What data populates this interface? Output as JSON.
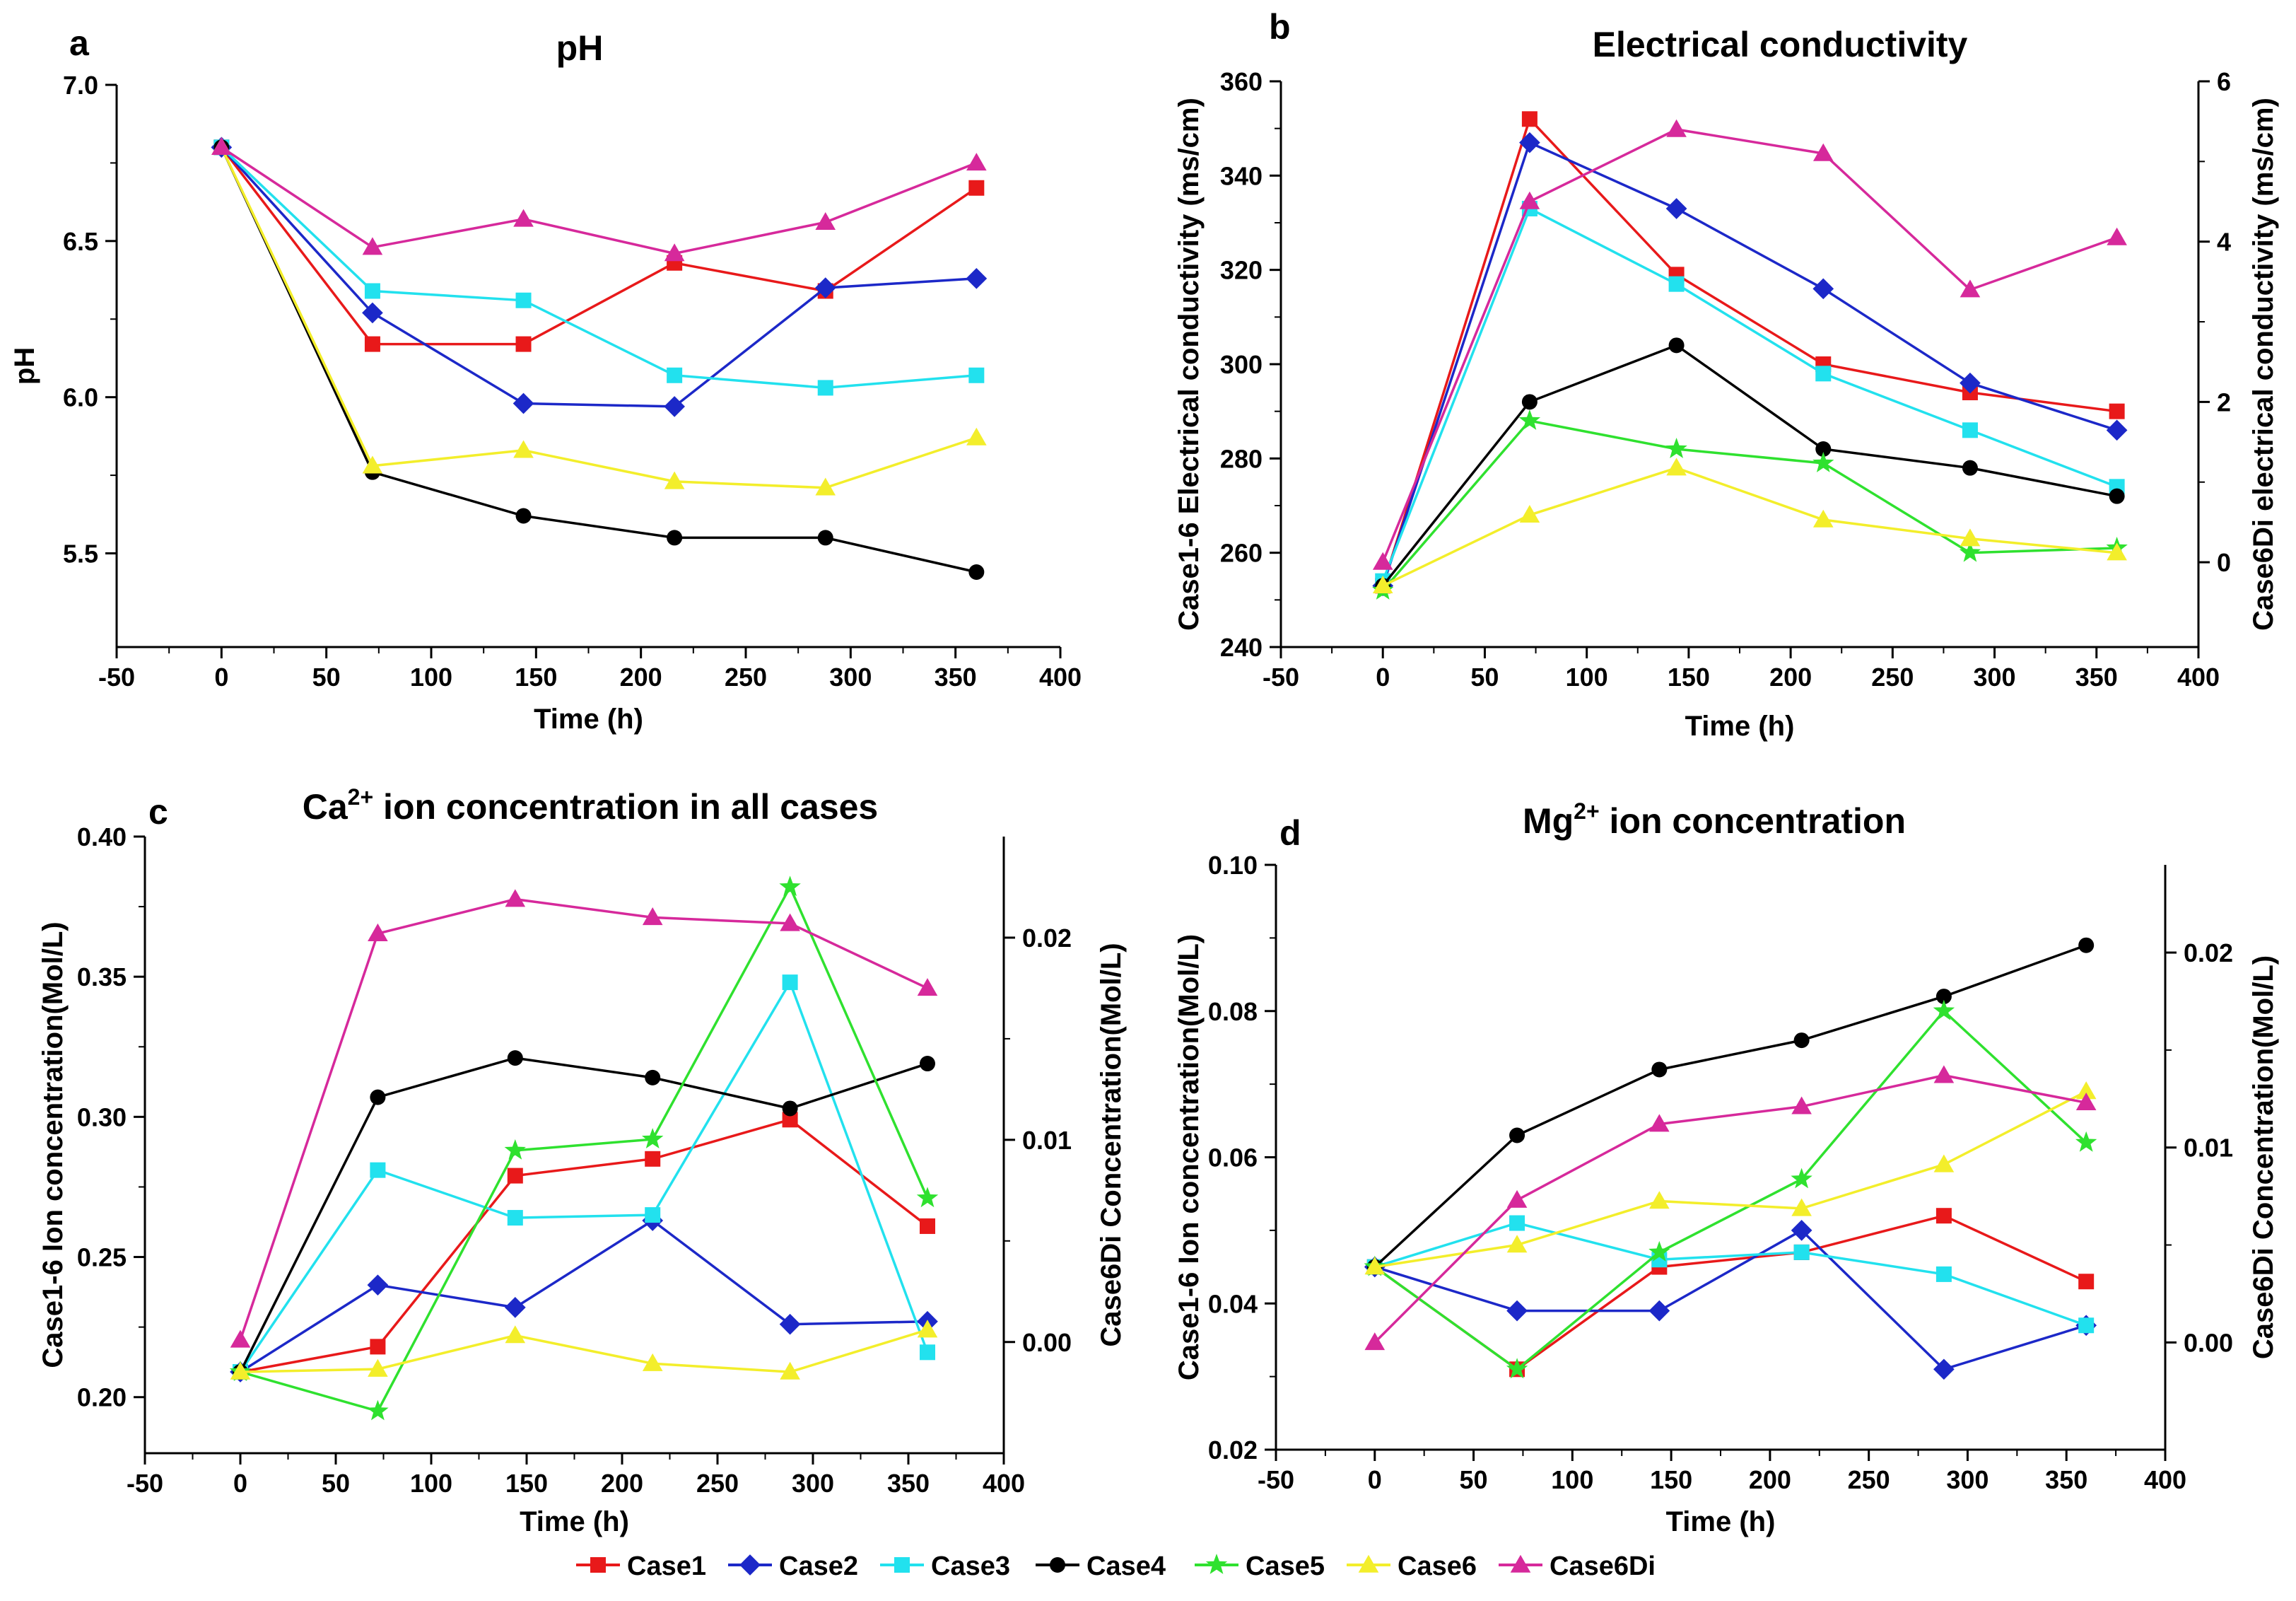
{
  "chart_data": [
    {
      "type": "line",
      "panel": "a",
      "title": "pH",
      "xlabel": "Time (h)",
      "ylabel": "pH",
      "xlim": [
        -50,
        400
      ],
      "ylim": [
        5.2,
        7.0
      ],
      "xticks": [
        -50,
        0,
        50,
        100,
        150,
        200,
        250,
        300,
        350,
        400
      ],
      "yticks": [
        5.5,
        6.0,
        6.5,
        7.0
      ],
      "ytick_labels": [
        "5.5",
        "6.0",
        "6.5",
        "7.0"
      ],
      "x": [
        0,
        72,
        144,
        216,
        288,
        360
      ],
      "series": [
        {
          "name": "Case1",
          "values": [
            6.8,
            6.17,
            6.17,
            6.43,
            6.34,
            6.67
          ]
        },
        {
          "name": "Case2",
          "values": [
            6.8,
            6.27,
            5.98,
            5.97,
            6.35,
            6.38
          ]
        },
        {
          "name": "Case3",
          "values": [
            6.8,
            6.34,
            6.31,
            6.07,
            6.03,
            6.07
          ]
        },
        {
          "name": "Case4",
          "values": [
            6.8,
            5.76,
            5.62,
            5.55,
            5.55,
            5.44
          ]
        },
        {
          "name": "Case6",
          "values": [
            6.8,
            5.78,
            5.83,
            5.73,
            5.71,
            5.87
          ]
        },
        {
          "name": "Case6Di",
          "values": [
            6.8,
            6.48,
            6.57,
            6.46,
            6.56,
            6.75
          ]
        }
      ]
    },
    {
      "type": "line",
      "panel": "b",
      "title": "Electrical conductivity",
      "xlabel": "Time (h)",
      "ylabel": "Case1-6 Electrical conductivity (ms/cm)",
      "y2label": "Case6Di electrical conductivity (ms/cm)",
      "xlim": [
        -50,
        400
      ],
      "ylim": [
        240,
        360
      ],
      "y2lim": [
        -1.058,
        6.0
      ],
      "xticks": [
        -50,
        0,
        50,
        100,
        150,
        200,
        250,
        300,
        350,
        400
      ],
      "yticks": [
        240,
        260,
        280,
        300,
        320,
        340,
        360
      ],
      "ytick_labels": [
        "240",
        "260",
        "280",
        "300",
        "320",
        "340",
        "360"
      ],
      "y2ticks": [
        0,
        2,
        4,
        6
      ],
      "y2tick_labels": [
        "0",
        "2",
        "4",
        "6"
      ],
      "x": [
        0,
        72,
        144,
        216,
        288,
        360
      ],
      "series": [
        {
          "name": "Case1",
          "axis": "left",
          "values": [
            253,
            352,
            319,
            300,
            294,
            290
          ]
        },
        {
          "name": "Case2",
          "axis": "left",
          "values": [
            253,
            347,
            333,
            316,
            296,
            286
          ]
        },
        {
          "name": "Case3",
          "axis": "left",
          "values": [
            254,
            333,
            317,
            298,
            286,
            274
          ]
        },
        {
          "name": "Case4",
          "axis": "left",
          "values": [
            253,
            292,
            304,
            282,
            278,
            272
          ]
        },
        {
          "name": "Case5",
          "axis": "left",
          "values": [
            252,
            288,
            282,
            279,
            260,
            261
          ]
        },
        {
          "name": "Case6",
          "axis": "left",
          "values": [
            253,
            268,
            278,
            267,
            263,
            260
          ]
        },
        {
          "name": "Case6Di",
          "axis": "right",
          "values": [
            0.0,
            4.5,
            5.4,
            5.1,
            3.4,
            4.05
          ]
        }
      ]
    },
    {
      "type": "line",
      "panel": "c",
      "title": "Ca",
      "title_superscript": "2+",
      "title_rest": " ion concentration in all cases",
      "xlabel": "Time (h)",
      "ylabel": "Case1-6 Ion concentration(Mol/L)",
      "y2label": "Case6Di Concentration(Mol/L)",
      "xlim": [
        -50,
        400
      ],
      "ylim": [
        0.18,
        0.4
      ],
      "y2lim": [
        -0.0055,
        0.025
      ],
      "xticks": [
        -50,
        0,
        50,
        100,
        150,
        200,
        250,
        300,
        350,
        400
      ],
      "yticks": [
        0.2,
        0.25,
        0.3,
        0.35,
        0.4
      ],
      "ytick_labels": [
        "0.20",
        "0.25",
        "0.30",
        "0.35",
        "0.40"
      ],
      "y2ticks": [
        0.0,
        0.01,
        0.02
      ],
      "y2tick_labels": [
        "0.00",
        "0.01",
        "0.02"
      ],
      "x": [
        0,
        72,
        144,
        216,
        288,
        360
      ],
      "series": [
        {
          "name": "Case1",
          "axis": "left",
          "values": [
            0.209,
            0.218,
            0.279,
            0.285,
            0.299,
            0.261
          ]
        },
        {
          "name": "Case2",
          "axis": "left",
          "values": [
            0.209,
            0.24,
            0.232,
            0.263,
            0.226,
            0.227
          ]
        },
        {
          "name": "Case3",
          "axis": "left",
          "values": [
            0.209,
            0.281,
            0.264,
            0.265,
            0.348,
            0.216
          ]
        },
        {
          "name": "Case4",
          "axis": "left",
          "values": [
            0.209,
            0.307,
            0.321,
            0.314,
            0.303,
            0.319
          ]
        },
        {
          "name": "Case5",
          "axis": "left",
          "values": [
            0.209,
            0.195,
            0.288,
            0.292,
            0.382,
            0.271
          ]
        },
        {
          "name": "Case6",
          "axis": "left",
          "values": [
            0.209,
            0.21,
            0.222,
            0.212,
            0.209,
            0.224
          ]
        },
        {
          "name": "Case6Di",
          "axis": "right",
          "values": [
            0.0001,
            0.0202,
            0.0219,
            0.021,
            0.0207,
            0.0175
          ]
        }
      ]
    },
    {
      "type": "line",
      "panel": "d",
      "title": "Mg",
      "title_superscript": "2+",
      "title_rest": " ion concentration",
      "xlabel": "Time (h)",
      "ylabel": "Case1-6 Ion concentration(Mol/L)",
      "y2label": "Case6Di Concentration(Mol/L)",
      "xlim": [
        -50,
        400
      ],
      "ylim": [
        0.02,
        0.1
      ],
      "y2lim": [
        -0.0055,
        0.0245
      ],
      "xticks": [
        -50,
        0,
        50,
        100,
        150,
        200,
        250,
        300,
        350,
        400
      ],
      "yticks": [
        0.02,
        0.04,
        0.06,
        0.08,
        0.1
      ],
      "ytick_labels": [
        "0.02",
        "0.04",
        "0.06",
        "0.08",
        "0.10"
      ],
      "y2ticks": [
        0.0,
        0.01,
        0.02
      ],
      "y2tick_labels": [
        "0.00",
        "0.01",
        "0.02"
      ],
      "x": [
        0,
        72,
        144,
        216,
        288,
        360
      ],
      "series": [
        {
          "name": "Case1",
          "axis": "left",
          "values": [
            0.045,
            0.031,
            0.045,
            0.047,
            0.052,
            0.043
          ]
        },
        {
          "name": "Case2",
          "axis": "left",
          "values": [
            0.045,
            0.039,
            0.039,
            0.05,
            0.031,
            0.037
          ]
        },
        {
          "name": "Case3",
          "axis": "left",
          "values": [
            0.045,
            0.051,
            0.046,
            0.047,
            0.044,
            0.037
          ]
        },
        {
          "name": "Case4",
          "axis": "left",
          "values": [
            0.045,
            0.063,
            0.072,
            0.076,
            0.082,
            0.089
          ]
        },
        {
          "name": "Case5",
          "axis": "left",
          "values": [
            0.045,
            0.031,
            0.047,
            0.057,
            0.08,
            0.062
          ]
        },
        {
          "name": "Case6",
          "axis": "left",
          "values": [
            0.045,
            0.048,
            0.054,
            0.053,
            0.059,
            0.069
          ]
        },
        {
          "name": "Case6Di",
          "axis": "right",
          "values": [
            0.0,
            0.0073,
            0.0112,
            0.0121,
            0.0137,
            0.0123
          ]
        }
      ]
    }
  ],
  "legend": {
    "placement": "bottom-center",
    "entries": [
      {
        "name": "Case1",
        "marker": "square",
        "color": "#e8191a"
      },
      {
        "name": "Case2",
        "marker": "diamond",
        "color": "#1c28c8"
      },
      {
        "name": "Case3",
        "marker": "square",
        "color": "#22e1ee"
      },
      {
        "name": "Case4",
        "marker": "circle",
        "color": "#000000"
      },
      {
        "name": "Case5",
        "marker": "star",
        "color": "#2fe12f"
      },
      {
        "name": "Case6",
        "marker": "triangle",
        "color": "#f3ee2b"
      },
      {
        "name": "Case6Di",
        "marker": "triangle",
        "color": "#d6299b"
      }
    ]
  }
}
